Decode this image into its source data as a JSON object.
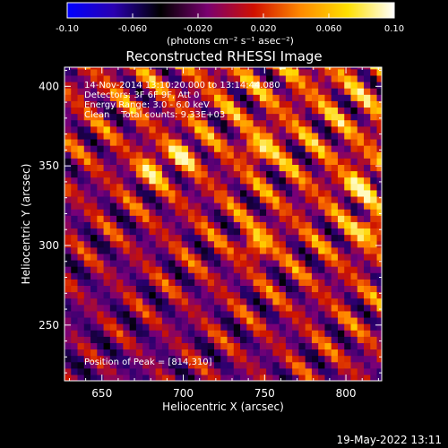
{
  "chart_data": {
    "type": "heatmap",
    "title": "Reconstructed RHESSI Image",
    "xlabel": "Heliocentric X (arcsec)",
    "ylabel": "Heliocentric Y (arcsec)",
    "xlim": [
      627,
      822
    ],
    "ylim": [
      215,
      412
    ],
    "xticks": [
      650,
      700,
      750,
      800
    ],
    "yticks": [
      250,
      300,
      350,
      400
    ],
    "colorbar": {
      "range": [
        -0.1,
        0.1
      ],
      "ticks": [
        "-0.10",
        "-0.060",
        "-0.020",
        "0.020",
        "0.060",
        "0.10"
      ],
      "unit_label": "(photons cm⁻² s⁻¹ asec⁻²)",
      "colors": [
        "#0000ff",
        "#2a00b0",
        "#000000",
        "#7a0070",
        "#d01000",
        "#ff8a00",
        "#ffe000",
        "#ffffff"
      ]
    },
    "annotations": [
      "14-Nov-2014 13:10:20.000 to 13:14:44.080",
      "Detectors: 3F 6F 9F, Att 0",
      "Energy Range: 3.0 - 6.0 keV",
      "Clean    Total counts: 9.33E+03"
    ],
    "peak_text": "Position of Peak = [814,310]",
    "peak_position": [
      814,
      310
    ],
    "pattern": {
      "description": "diagonal ridge/stripe pattern with bright maxima near center-right",
      "bright_spots": [
        [
          814,
          310
        ],
        [
          808,
          338
        ],
        [
          746,
          302
        ],
        [
          748,
          362
        ],
        [
          700,
          358
        ],
        [
          680,
          348
        ]
      ]
    }
  },
  "footer": {
    "timestamp": "19-May-2022 13:11"
  }
}
